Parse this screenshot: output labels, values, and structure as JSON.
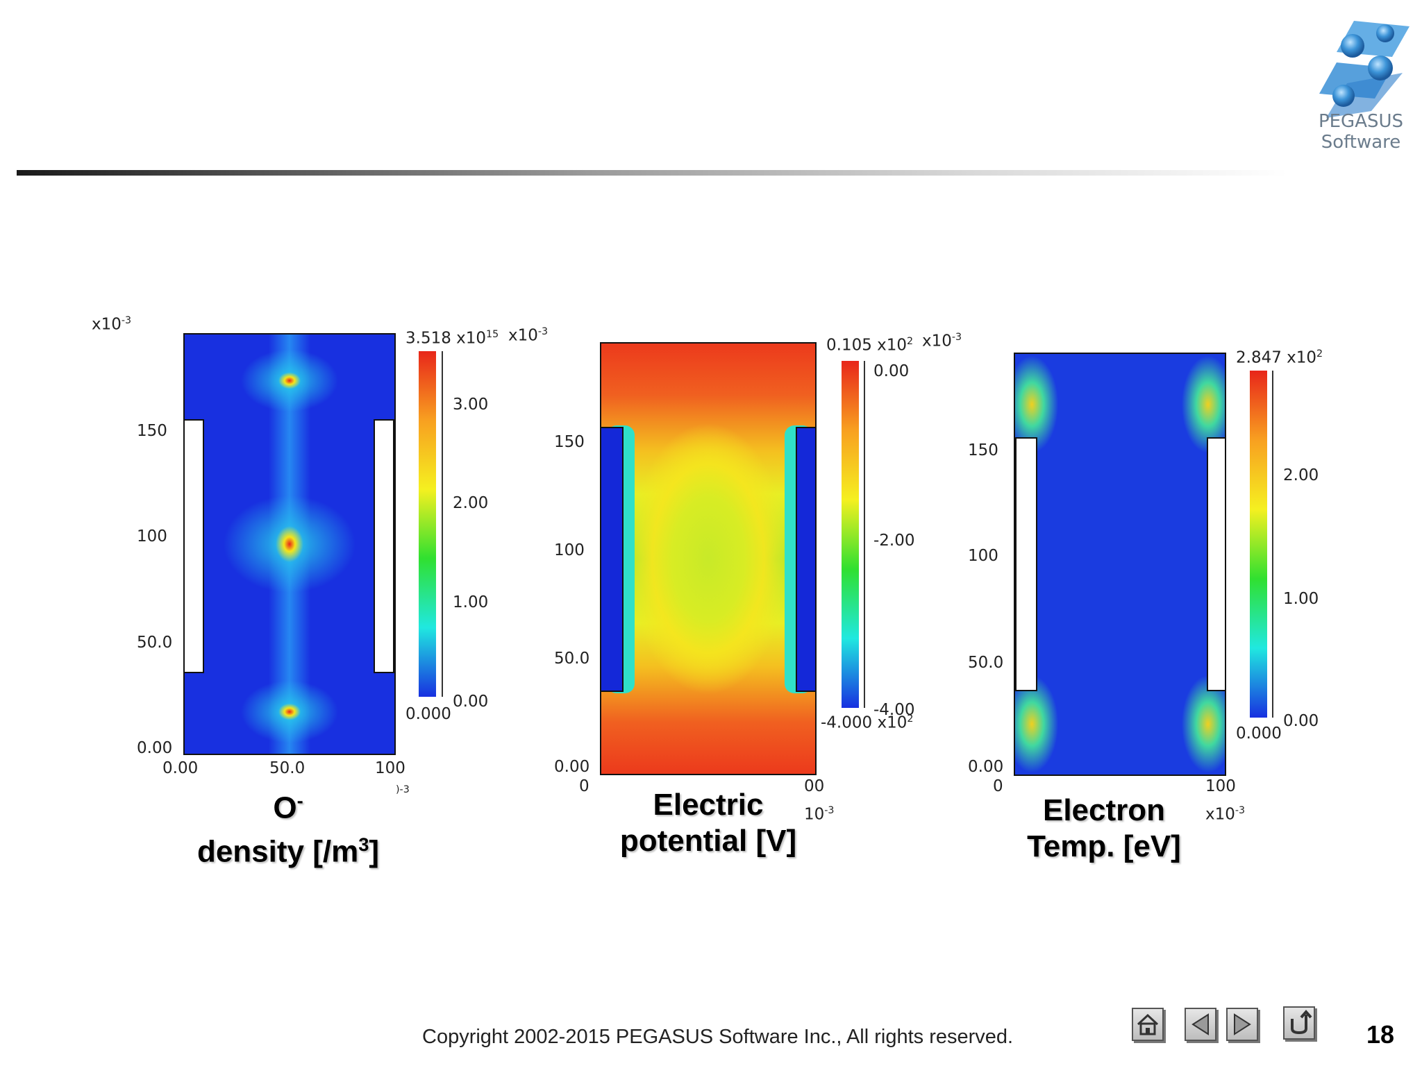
{
  "logo": {
    "line1": "PEGASUS",
    "line2": "Software"
  },
  "panels": [
    {
      "id": "density",
      "y_multiplier": "x10",
      "y_multiplier_exp": "-3",
      "y_ticks": [
        "150",
        "100",
        "50.0",
        "0.00"
      ],
      "x_ticks": [
        "0.00",
        "50.0",
        "100"
      ],
      "x_multiplier_exp": ")-3",
      "colorbar_max": "3.518 x10",
      "colorbar_max_exp": "15",
      "colorbar_min": "0.000",
      "colorbar_ticks": [
        "3.00",
        "2.00",
        "1.00",
        "0.00"
      ],
      "caption_line1": "O",
      "caption_line1_sup": "-",
      "caption_line2": "density [/m",
      "caption_line2_sup": "3",
      "caption_line2_end": "]"
    },
    {
      "id": "potential",
      "y_multiplier": "x10",
      "y_multiplier_exp": "-3",
      "y_ticks": [
        "150",
        "100",
        "50.0",
        "0.00"
      ],
      "x_ticks": [
        "0",
        "00"
      ],
      "x_multiplier": "10",
      "x_multiplier_exp": "-3",
      "colorbar_max": "0.105 x10",
      "colorbar_max_exp": "2",
      "colorbar_min": "-4.000 x10",
      "colorbar_min_exp": "2",
      "colorbar_ticks": [
        "0.00",
        "-2.00",
        "-4.00"
      ],
      "caption_line1": "Electric",
      "caption_line2": "potential [V]"
    },
    {
      "id": "temperature",
      "y_multiplier": "x10",
      "y_multiplier_exp": "-3",
      "y_ticks": [
        "150",
        "100",
        "50.0",
        "0.00"
      ],
      "x_ticks": [
        "0",
        "100"
      ],
      "x_multiplier": "x10",
      "x_multiplier_exp": "-3",
      "colorbar_max": "2.847 x10",
      "colorbar_max_exp": "2",
      "colorbar_min": "0.000",
      "colorbar_ticks": [
        "2.00",
        "1.00",
        "0.00"
      ],
      "caption_line1": "Electron",
      "caption_line2": "Temp. [eV]"
    }
  ],
  "footer": {
    "copyright": "Copyright 2002-2015 PEGASUS Software Inc., All rights reserved.",
    "page_number": "18",
    "nav": [
      "home-icon",
      "previous-icon",
      "next-icon",
      "return-icon"
    ]
  },
  "colors": {
    "jet_low": "#1a2ad8",
    "jet_high": "#e8261a",
    "electrode": "#ffffff"
  }
}
